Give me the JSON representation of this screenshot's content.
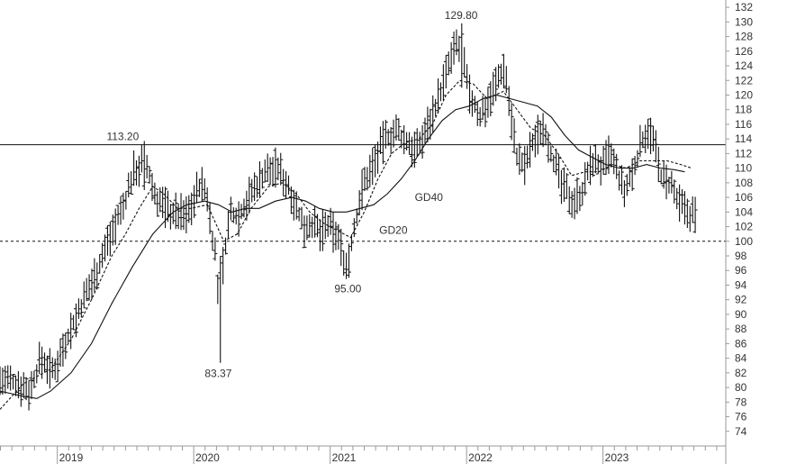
{
  "chart_data": {
    "type": "line",
    "subtype": "ohlc-price-chart",
    "title": "",
    "xlabel": "",
    "ylabel": "",
    "ylim": [
      72,
      133
    ],
    "xlim": [
      2018.58,
      2023.9
    ],
    "y_ticks": [
      74,
      76,
      78,
      80,
      82,
      84,
      86,
      88,
      90,
      92,
      94,
      96,
      98,
      100,
      102,
      104,
      106,
      108,
      110,
      112,
      114,
      116,
      118,
      120,
      122,
      124,
      126,
      128,
      130,
      132
    ],
    "x_ticks": [
      {
        "label": "2019",
        "x": 2019.0
      },
      {
        "label": "2020",
        "x": 2020.0
      },
      {
        "label": "2021",
        "x": 2021.0
      },
      {
        "label": "2022",
        "x": 2022.0
      },
      {
        "label": "2023",
        "x": 2023.0
      }
    ],
    "grid": false,
    "reference_lines": [
      {
        "y": 113.2,
        "style": "solid"
      },
      {
        "y": 100,
        "style": "dashed"
      }
    ],
    "annotations": [
      {
        "text": "113.20",
        "x": 2019.48,
        "y": 113.2
      },
      {
        "text": "129.80",
        "x": 2021.96,
        "y": 129.8
      },
      {
        "text": "83.37",
        "x": 2020.18,
        "y": 83.37
      },
      {
        "text": "95.00",
        "x": 2021.13,
        "y": 95.0
      },
      {
        "text": "GD40",
        "x": 2021.62,
        "y": 106.0
      },
      {
        "text": "GD20",
        "x": 2021.36,
        "y": 101.5
      }
    ],
    "price_path": [
      [
        2018.58,
        81.0
      ],
      [
        2018.72,
        80.5
      ],
      [
        2018.8,
        79.5
      ],
      [
        2018.88,
        84.0
      ],
      [
        2018.97,
        82.0
      ],
      [
        2019.05,
        86.0
      ],
      [
        2019.15,
        90.0
      ],
      [
        2019.3,
        96.5
      ],
      [
        2019.4,
        101.5
      ],
      [
        2019.48,
        104.5
      ],
      [
        2019.56,
        109.5
      ],
      [
        2019.64,
        111.0
      ],
      [
        2019.72,
        106.0
      ],
      [
        2019.83,
        104.0
      ],
      [
        2019.95,
        103.5
      ],
      [
        2020.05,
        108.0
      ],
      [
        2020.1,
        106.0
      ],
      [
        2020.13,
        101.5
      ],
      [
        2020.16,
        98.0
      ],
      [
        2020.19,
        90.0
      ],
      [
        2020.22,
        98.0
      ],
      [
        2020.27,
        104.0
      ],
      [
        2020.33,
        103.5
      ],
      [
        2020.42,
        106.5
      ],
      [
        2020.52,
        109.5
      ],
      [
        2020.62,
        110.0
      ],
      [
        2020.72,
        106.5
      ],
      [
        2020.8,
        102.0
      ],
      [
        2020.87,
        102.5
      ],
      [
        2020.92,
        101.0
      ],
      [
        2020.98,
        102.0
      ],
      [
        2021.05,
        101.0
      ],
      [
        2021.12,
        96.5
      ],
      [
        2021.17,
        101.0
      ],
      [
        2021.23,
        107.0
      ],
      [
        2021.3,
        110.0
      ],
      [
        2021.4,
        114.0
      ],
      [
        2021.48,
        115.0
      ],
      [
        2021.56,
        113.5
      ],
      [
        2021.64,
        112.5
      ],
      [
        2021.74,
        117.0
      ],
      [
        2021.8,
        120.0
      ],
      [
        2021.87,
        124.0
      ],
      [
        2021.93,
        127.0
      ],
      [
        2021.97,
        125.0
      ],
      [
        2022.02,
        120.0
      ],
      [
        2022.1,
        117.0
      ],
      [
        2022.2,
        121.0
      ],
      [
        2022.28,
        124.0
      ],
      [
        2022.32,
        118.0
      ],
      [
        2022.37,
        111.5
      ],
      [
        2022.42,
        110.0
      ],
      [
        2022.5,
        114.0
      ],
      [
        2022.57,
        116.0
      ],
      [
        2022.62,
        112.0
      ],
      [
        2022.7,
        107.5
      ],
      [
        2022.78,
        105.5
      ],
      [
        2022.85,
        107.0
      ],
      [
        2022.92,
        111.0
      ],
      [
        2023.0,
        110.0
      ],
      [
        2023.05,
        112.0
      ],
      [
        2023.1,
        109.5
      ],
      [
        2023.16,
        106.5
      ],
      [
        2023.23,
        110.0
      ],
      [
        2023.28,
        113.5
      ],
      [
        2023.33,
        115.5
      ],
      [
        2023.38,
        113.0
      ],
      [
        2023.43,
        108.5
      ],
      [
        2023.5,
        107.5
      ],
      [
        2023.55,
        105.0
      ],
      [
        2023.62,
        104.0
      ],
      [
        2023.68,
        103.5
      ]
    ],
    "series": [
      {
        "style": "dashed",
        "points": [
          [
            2018.58,
            77.0
          ],
          [
            2018.75,
            80.5
          ],
          [
            2018.95,
            82.5
          ],
          [
            2019.1,
            86.5
          ],
          [
            2019.25,
            92.0
          ],
          [
            2019.4,
            98.0
          ],
          [
            2019.5,
            101.0
          ],
          [
            2019.6,
            104.5
          ],
          [
            2019.7,
            107.5
          ],
          [
            2019.78,
            106.5
          ],
          [
            2019.88,
            104.5
          ],
          [
            2019.98,
            104.5
          ],
          [
            2020.1,
            105.0
          ],
          [
            2020.22,
            100.0
          ],
          [
            2020.32,
            101.0
          ],
          [
            2020.42,
            104.5
          ],
          [
            2020.55,
            107.5
          ],
          [
            2020.65,
            108.0
          ],
          [
            2020.75,
            106.5
          ],
          [
            2020.85,
            104.0
          ],
          [
            2020.95,
            102.5
          ],
          [
            2021.05,
            101.5
          ],
          [
            2021.15,
            100.5
          ],
          [
            2021.25,
            104.0
          ],
          [
            2021.35,
            108.5
          ],
          [
            2021.45,
            112.0
          ],
          [
            2021.55,
            113.5
          ],
          [
            2021.65,
            114.0
          ],
          [
            2021.75,
            116.0
          ],
          [
            2021.85,
            120.0
          ],
          [
            2021.95,
            122.0
          ],
          [
            2022.05,
            121.5
          ],
          [
            2022.15,
            119.5
          ],
          [
            2022.27,
            120.5
          ],
          [
            2022.37,
            118.0
          ],
          [
            2022.47,
            115.5
          ],
          [
            2022.57,
            114.5
          ],
          [
            2022.67,
            112.0
          ],
          [
            2022.77,
            109.0
          ],
          [
            2022.87,
            109.5
          ],
          [
            2022.97,
            109.5
          ],
          [
            2023.07,
            110.5
          ],
          [
            2023.17,
            110.0
          ],
          [
            2023.27,
            111.0
          ],
          [
            2023.37,
            111.0
          ],
          [
            2023.47,
            111.0
          ],
          [
            2023.57,
            110.5
          ],
          [
            2023.65,
            110.0
          ]
        ]
      },
      {
        "style": "solid",
        "points": [
          [
            2018.58,
            79.5
          ],
          [
            2018.75,
            78.8
          ],
          [
            2018.85,
            78.5
          ],
          [
            2018.95,
            79.5
          ],
          [
            2019.1,
            82.0
          ],
          [
            2019.25,
            86.0
          ],
          [
            2019.4,
            91.5
          ],
          [
            2019.55,
            96.5
          ],
          [
            2019.7,
            101.0
          ],
          [
            2019.85,
            104.0
          ],
          [
            2019.95,
            105.0
          ],
          [
            2020.08,
            105.5
          ],
          [
            2020.18,
            105.0
          ],
          [
            2020.28,
            104.0
          ],
          [
            2020.38,
            104.5
          ],
          [
            2020.48,
            104.5
          ],
          [
            2020.6,
            105.5
          ],
          [
            2020.72,
            106.0
          ],
          [
            2020.82,
            105.5
          ],
          [
            2020.92,
            104.5
          ],
          [
            2021.02,
            104.0
          ],
          [
            2021.12,
            104.0
          ],
          [
            2021.22,
            104.5
          ],
          [
            2021.32,
            105.0
          ],
          [
            2021.42,
            106.5
          ],
          [
            2021.52,
            108.5
          ],
          [
            2021.62,
            111.0
          ],
          [
            2021.72,
            114.0
          ],
          [
            2021.82,
            116.5
          ],
          [
            2021.92,
            118.0
          ],
          [
            2022.02,
            118.5
          ],
          [
            2022.12,
            119.5
          ],
          [
            2022.22,
            120.0
          ],
          [
            2022.32,
            119.5
          ],
          [
            2022.42,
            119.0
          ],
          [
            2022.52,
            118.5
          ],
          [
            2022.62,
            117.0
          ],
          [
            2022.72,
            114.5
          ],
          [
            2022.82,
            112.5
          ],
          [
            2022.92,
            111.5
          ],
          [
            2023.02,
            110.5
          ],
          [
            2023.12,
            110.0
          ],
          [
            2023.22,
            110.0
          ],
          [
            2023.32,
            110.5
          ],
          [
            2023.42,
            110.0
          ],
          [
            2023.52,
            109.8
          ],
          [
            2023.6,
            109.5
          ]
        ]
      }
    ]
  }
}
